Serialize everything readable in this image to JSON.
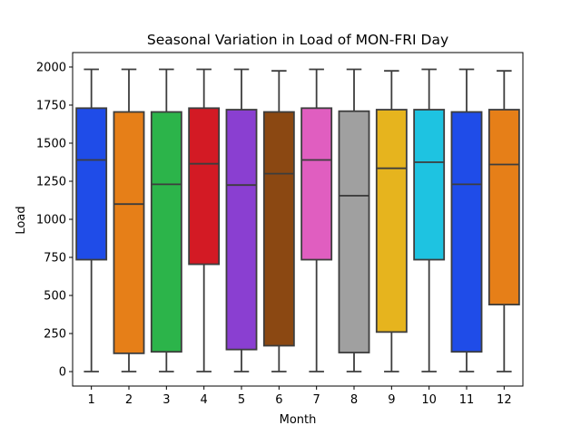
{
  "chart_data": {
    "type": "box",
    "title": "Seasonal Variation in Load of MON-FRI Day",
    "xlabel": "Month",
    "ylabel": "Load",
    "ylim": [
      -95,
      2095
    ],
    "yticks": [
      0,
      250,
      500,
      750,
      1000,
      1250,
      1500,
      1750,
      2000
    ],
    "grid": false,
    "categories": [
      "1",
      "2",
      "3",
      "4",
      "5",
      "6",
      "7",
      "8",
      "9",
      "10",
      "11",
      "12"
    ],
    "boxes": [
      {
        "category": "1",
        "min": 0,
        "q1": 735,
        "median": 1390,
        "q3": 1730,
        "max": 1985,
        "color": "#1f4ce8"
      },
      {
        "category": "2",
        "min": 0,
        "q1": 120,
        "median": 1100,
        "q3": 1705,
        "max": 1985,
        "color": "#e67f18"
      },
      {
        "category": "3",
        "min": 0,
        "q1": 130,
        "median": 1230,
        "q3": 1705,
        "max": 1985,
        "color": "#2cb44a"
      },
      {
        "category": "4",
        "min": 0,
        "q1": 705,
        "median": 1365,
        "q3": 1730,
        "max": 1985,
        "color": "#d31a24"
      },
      {
        "category": "5",
        "min": 0,
        "q1": 145,
        "median": 1225,
        "q3": 1720,
        "max": 1985,
        "color": "#8a3fd1"
      },
      {
        "category": "6",
        "min": 0,
        "q1": 170,
        "median": 1300,
        "q3": 1705,
        "max": 1975,
        "color": "#8b4812"
      },
      {
        "category": "7",
        "min": 0,
        "q1": 735,
        "median": 1390,
        "q3": 1730,
        "max": 1985,
        "color": "#e05ec0"
      },
      {
        "category": "8",
        "min": 0,
        "q1": 125,
        "median": 1155,
        "q3": 1710,
        "max": 1985,
        "color": "#a0a0a0"
      },
      {
        "category": "9",
        "min": 0,
        "q1": 260,
        "median": 1335,
        "q3": 1720,
        "max": 1975,
        "color": "#e6b41e"
      },
      {
        "category": "10",
        "min": 0,
        "q1": 735,
        "median": 1375,
        "q3": 1720,
        "max": 1985,
        "color": "#1ec3e1"
      },
      {
        "category": "11",
        "min": 0,
        "q1": 130,
        "median": 1230,
        "q3": 1705,
        "max": 1985,
        "color": "#1f4ce8"
      },
      {
        "category": "12",
        "min": 0,
        "q1": 440,
        "median": 1360,
        "q3": 1720,
        "max": 1975,
        "color": "#e67f18"
      }
    ]
  }
}
